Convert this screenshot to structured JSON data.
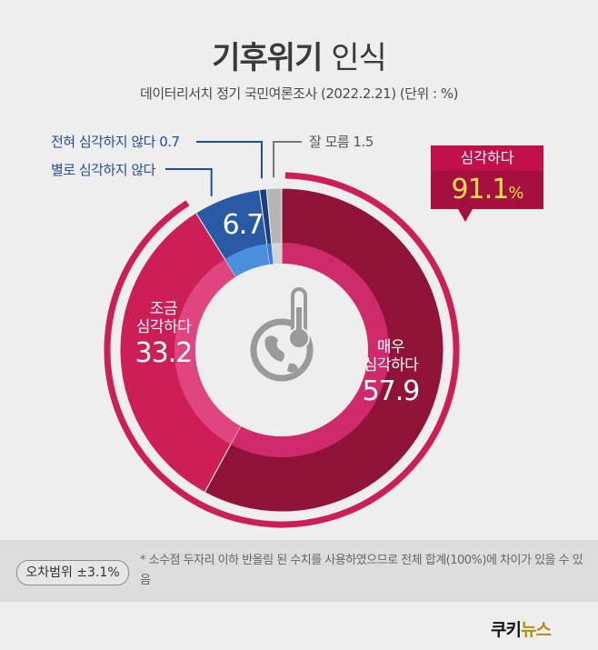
{
  "title": {
    "bold": "기후위기",
    "light": "인식"
  },
  "subtitle": "데이터리서치 정기 국민여론조사 (2022.2.21)   (단위 : %)",
  "chart_data": {
    "type": "pie",
    "title": "기후위기 인식",
    "categories": [
      "매우 심각하다",
      "조금 심각하다",
      "별로 심각하지 않다",
      "전혀 심각하지 않다",
      "잘 모름"
    ],
    "values": [
      57.9,
      33.2,
      6.7,
      0.7,
      1.5
    ],
    "colors": [
      "#8f1438",
      "#cc1f55",
      "#2a5aa6",
      "#1a3f80",
      "#b5b5b5"
    ],
    "unit": "%",
    "group_total": {
      "label": "심각하다",
      "value": "91.1",
      "unit": "%"
    }
  },
  "labels": {
    "very_name_1": "매우",
    "very_name_2": "심각하다",
    "very_value": "57.9",
    "some_name_1": "조금",
    "some_name_2": "심각하다",
    "some_value": "33.2",
    "notmuch_value": "6.7",
    "notmuch_callout": "별로 심각하지 않다",
    "notatall_callout": "전혀 심각하지 않다 0.7",
    "dk_callout": "잘 모름 1.5"
  },
  "footer": {
    "margin_label": "오차범위 ±3.1%",
    "note": "* 소수점 두자리 이하 반올림 된 수치를 사용하였으므로 전체 합계(100%)에 차이가 있을 수 있음"
  },
  "logo": {
    "main": "쿠키",
    "accent": "뉴스"
  },
  "icon": "globe-thermometer-icon"
}
